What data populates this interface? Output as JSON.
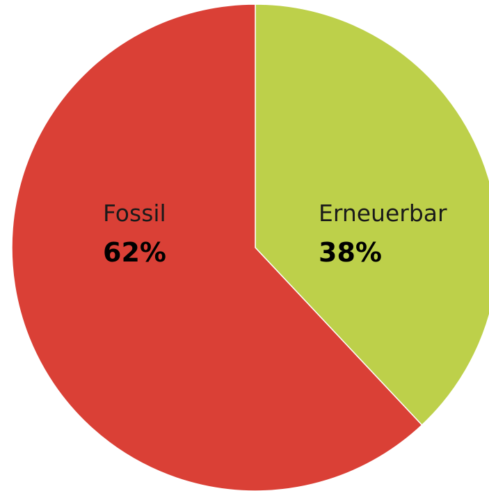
{
  "chart_data": {
    "type": "pie",
    "categories": [
      "Erneuerbar",
      "Fossil"
    ],
    "values": [
      38,
      62
    ],
    "value_labels": [
      "38%",
      "62%"
    ],
    "colors": [
      "#bdd04a",
      "#da4036"
    ]
  }
}
